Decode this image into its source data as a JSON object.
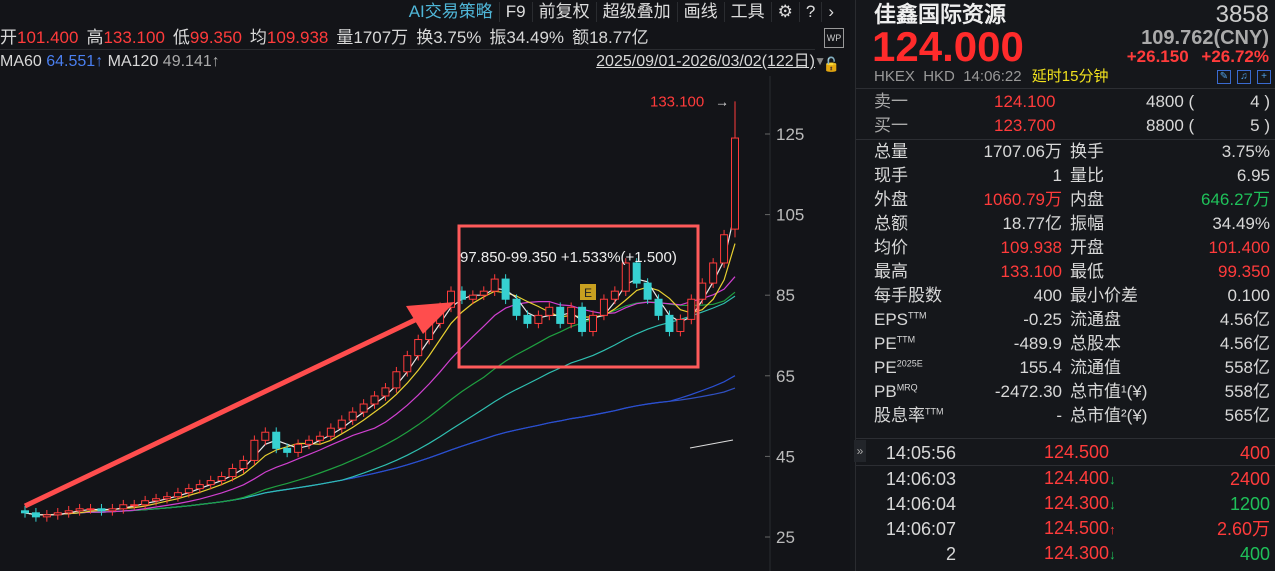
{
  "toolbar": {
    "items": [
      "AI交易策略",
      "F9",
      "前复权",
      "超级叠加",
      "画线",
      "工具"
    ],
    "settings_icon": "gear-icon",
    "help_icon": "question-icon",
    "more_icon": "chevron-right-icon"
  },
  "stats": [
    {
      "label": "开",
      "value": "101.400",
      "color": "red"
    },
    {
      "label": "高",
      "value": "133.100",
      "color": "red"
    },
    {
      "label": "低",
      "value": "99.350",
      "color": "red"
    },
    {
      "label": "均",
      "value": "109.938",
      "color": "red"
    },
    {
      "label": "量",
      "value": "1707万",
      "color": ""
    },
    {
      "label": "换",
      "value": "3.75%",
      "color": ""
    },
    {
      "label": "振",
      "value": "34.49%",
      "color": ""
    },
    {
      "label": "额",
      "value": "18.77亿",
      "color": ""
    }
  ],
  "wp_label": "WP",
  "ma": {
    "ma60_label": "MA60",
    "ma60_value": "64.551↑",
    "ma120_label": "MA120",
    "ma120_value": "49.141↑"
  },
  "date_range": "2025/09/01-2026/03/02(122日)",
  "chart_data": {
    "type": "candlestick",
    "yticks": [
      25,
      45,
      65,
      85,
      105,
      125
    ],
    "ylim": [
      22,
      140
    ],
    "closes": [
      31,
      30,
      30.5,
      31,
      31.5,
      32,
      32,
      31.5,
      32,
      33,
      33,
      34,
      34.5,
      35,
      36,
      37,
      38,
      39,
      40,
      42,
      44,
      49,
      51,
      47,
      46,
      48,
      49,
      50,
      52,
      54,
      56,
      58,
      60,
      62,
      66,
      70,
      74,
      78,
      82,
      86,
      84,
      85,
      86,
      89,
      84,
      80,
      78,
      80,
      82,
      78,
      82,
      76,
      80,
      84,
      86,
      93,
      88,
      84,
      80,
      76,
      79,
      84,
      88,
      93,
      100
    ],
    "last": {
      "open": 101.4,
      "high": 133.1,
      "low": 99.35,
      "close": 124
    },
    "high_label": "133.100",
    "box_annotation": "97.850-99.350  +1.533%(+1.500)",
    "event_badge": "E",
    "colors": {
      "up": "#ff3b3b",
      "down": "#36d1d1",
      "box": "#ff5a5a",
      "arrow": "#ff4d4d"
    }
  },
  "quote": {
    "name": "佳鑫国际资源",
    "code": "3858",
    "price": "124.000",
    "cny": "109.762(CNY)",
    "change": "+26.150",
    "change_pct": "+26.72%",
    "exchange": "HKEX",
    "currency": "HKD",
    "time": "14:06:22",
    "delay": "延时15分钟"
  },
  "orderbook": [
    {
      "label": "卖一",
      "price": "124.100",
      "vol": "4800 (",
      "count": "4 )"
    },
    {
      "label": "买一",
      "price": "123.700",
      "vol": "8800 (",
      "count": "5 )"
    }
  ],
  "fields": [
    [
      "总量",
      "1707.06万",
      "",
      "换手",
      "3.75%",
      ""
    ],
    [
      "现手",
      "1",
      "",
      "量比",
      "6.95",
      ""
    ],
    [
      "外盘",
      "1060.79万",
      "red",
      "内盘",
      "646.27万",
      "green"
    ],
    [
      "总额",
      "18.77亿",
      "",
      "振幅",
      "34.49%",
      ""
    ],
    [
      "均价",
      "109.938",
      "red",
      "开盘",
      "101.400",
      "red"
    ],
    [
      "最高",
      "133.100",
      "red",
      "最低",
      "99.350",
      "red"
    ],
    [
      "每手股数",
      "400",
      "",
      "最小价差",
      "0.100",
      ""
    ],
    [
      "EPS",
      "-0.25",
      "",
      "流通盘",
      "4.56亿",
      ""
    ],
    [
      "PE",
      "-489.9",
      "",
      "总股本",
      "4.56亿",
      ""
    ],
    [
      "PE",
      "155.4",
      "",
      "流通值",
      "558亿",
      ""
    ],
    [
      "PB",
      "-2472.30",
      "",
      "总市值¹(¥)",
      "558亿",
      ""
    ],
    [
      "股息率",
      "-",
      "",
      "总市值²(¥)",
      "565亿",
      ""
    ]
  ],
  "field_sups": [
    "",
    "",
    "",
    "",
    "",
    "",
    "",
    "TTM",
    "TTM",
    "2025E",
    "MRQ",
    "TTM"
  ],
  "ticks": [
    {
      "time": "14:05:56",
      "price": "124.500",
      "dir": "",
      "vol": "400",
      "vc": "red"
    },
    {
      "time": "14:06:03",
      "price": "124.400",
      "dir": "down",
      "vol": "2400",
      "vc": "red"
    },
    {
      "time": "14:06:04",
      "price": "124.300",
      "dir": "down",
      "vol": "1200",
      "vc": "green"
    },
    {
      "time": "14:06:07",
      "price": "124.500",
      "dir": "up",
      "vol": "2.60万",
      "vc": "red"
    },
    {
      "time": "2",
      "price": "124.300",
      "dir": "down",
      "vol": "400",
      "vc": "green"
    }
  ]
}
